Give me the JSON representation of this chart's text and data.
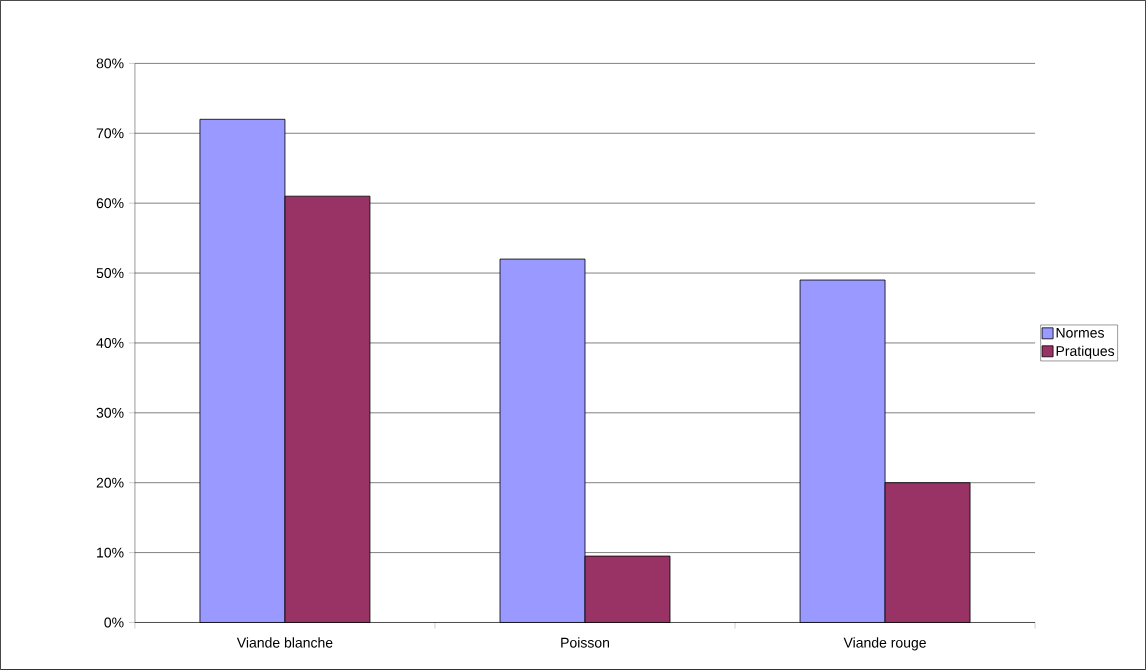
{
  "chart_data": {
    "type": "bar",
    "categories": [
      "Viande blanche",
      "Poisson",
      "Viande rouge"
    ],
    "series": [
      {
        "name": "Normes",
        "color": "#9999ff",
        "values": [
          72,
          52,
          49
        ]
      },
      {
        "name": "Pratiques",
        "color": "#993366",
        "values": [
          61,
          9.5,
          20
        ]
      }
    ],
    "ylim": [
      0,
      80
    ],
    "yticks": [
      {
        "value": 0,
        "label": "0%"
      },
      {
        "value": 10,
        "label": "10%"
      },
      {
        "value": 20,
        "label": "20%"
      },
      {
        "value": 30,
        "label": "30%"
      },
      {
        "value": 40,
        "label": "40%"
      },
      {
        "value": 50,
        "label": "50%"
      },
      {
        "value": 60,
        "label": "60%"
      },
      {
        "value": 70,
        "label": "70%"
      },
      {
        "value": 80,
        "label": "80%"
      }
    ],
    "grid": "y",
    "legend": "right"
  }
}
